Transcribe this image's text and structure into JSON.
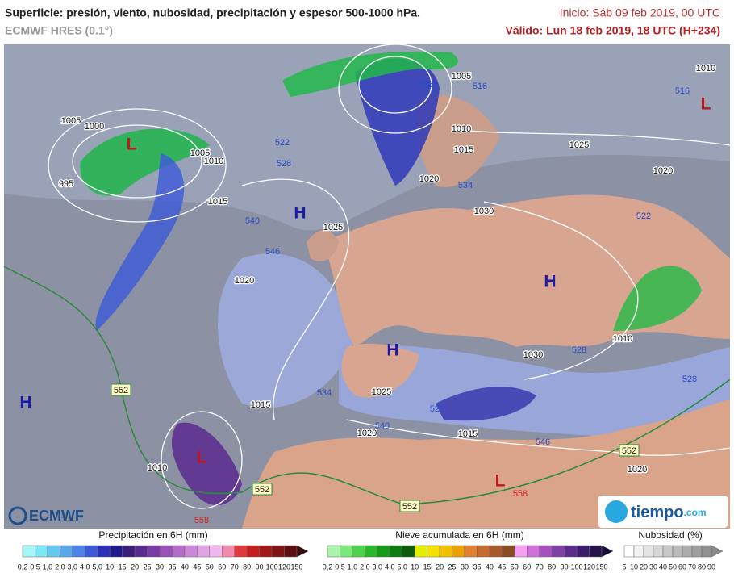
{
  "header": {
    "title": "Superficie: presión, viento, nubosidad, precipitación y espesor 500-1000 hPa.",
    "model": "ECMWF HRES (0.1°)",
    "init": "Inicio: Sáb 09 feb 2019, 00 UTC",
    "valid": "Válido: Lun 18 feb 2019, 18 UTC (H+234)"
  },
  "map": {
    "highs": [
      "H",
      "H",
      "H",
      "H"
    ],
    "lows": [
      "L",
      "L",
      "L",
      "L"
    ],
    "isobar_labels": [
      "1005",
      "1000",
      "995",
      "1005",
      "1010",
      "1015",
      "1020",
      "1025",
      "1005",
      "1010",
      "1015",
      "1020",
      "1025",
      "1030",
      "1020",
      "1010",
      "1030",
      "1025",
      "1020",
      "1015",
      "1015",
      "1010",
      "1020",
      "1010"
    ],
    "thickness_labels": [
      "516",
      "522",
      "528",
      "540",
      "546",
      "534",
      "516",
      "522",
      "528",
      "534",
      "540",
      "546",
      "516",
      "522",
      "528"
    ],
    "boxed_labels": [
      "552",
      "552",
      "552",
      "552"
    ],
    "red_labels": [
      "558",
      "558"
    ]
  },
  "logos": {
    "left": "ECMWF",
    "right": "tiempo",
    "right_suffix": ".com"
  },
  "legends": [
    {
      "title": "Precipitación en 6H (mm)",
      "ticks": [
        "0,2",
        "0,5",
        "1,0",
        "2,0",
        "3,0",
        "4,0",
        "5,0",
        "10",
        "15",
        "20",
        "25",
        "30",
        "35",
        "40",
        "45",
        "50",
        "60",
        "70",
        "80",
        "90",
        "100",
        "120",
        "150"
      ],
      "colors": [
        "#a5f5f9",
        "#7fe6f5",
        "#64c8f0",
        "#5aa8ec",
        "#4d82e6",
        "#3c5ad8",
        "#2a2fb5",
        "#1f1a8a",
        "#3a1e78",
        "#5b2a8f",
        "#7a3aa5",
        "#9a52b8",
        "#b56cc8",
        "#cc88d8",
        "#e0a3e6",
        "#f0b8ee",
        "#f28ab0",
        "#e03a3a",
        "#c41e1e",
        "#a01818",
        "#7e1414",
        "#5e1010"
      ],
      "arrow_color": "#3a0c0c"
    },
    {
      "title": "Nieve acumulada en 6H (mm)",
      "ticks": [
        "0,2",
        "0,5",
        "1,0",
        "2,0",
        "3,0",
        "4,0",
        "5,0",
        "10",
        "15",
        "20",
        "25",
        "30",
        "35",
        "40",
        "45",
        "50",
        "60",
        "70",
        "80",
        "90",
        "100",
        "120",
        "150"
      ],
      "colors": [
        "#aaf5aa",
        "#7ae87a",
        "#4ed24e",
        "#2ab82a",
        "#179a17",
        "#0f7a0f",
        "#0b5c0b",
        "#e0f000",
        "#f5e000",
        "#f2c000",
        "#eda000",
        "#e08030",
        "#c86a30",
        "#a85a2a",
        "#8a4a22",
        "#f5a0f0",
        "#d070d8",
        "#a850c0",
        "#8040a8",
        "#5c2c8c",
        "#3c1c6c",
        "#28144c"
      ],
      "arrow_color": "#1a0c38"
    },
    {
      "title": "Nubosidad (%)",
      "ticks": [
        "5",
        "10",
        "20",
        "30",
        "40",
        "50",
        "60",
        "70",
        "80",
        "90"
      ],
      "colors": [
        "#ffffff",
        "#f2f2f2",
        "#e4e4e4",
        "#d6d6d6",
        "#c8c8c8",
        "#bababa",
        "#acacac",
        "#9e9e9e",
        "#909090"
      ],
      "arrow_color": "#888888"
    }
  ]
}
